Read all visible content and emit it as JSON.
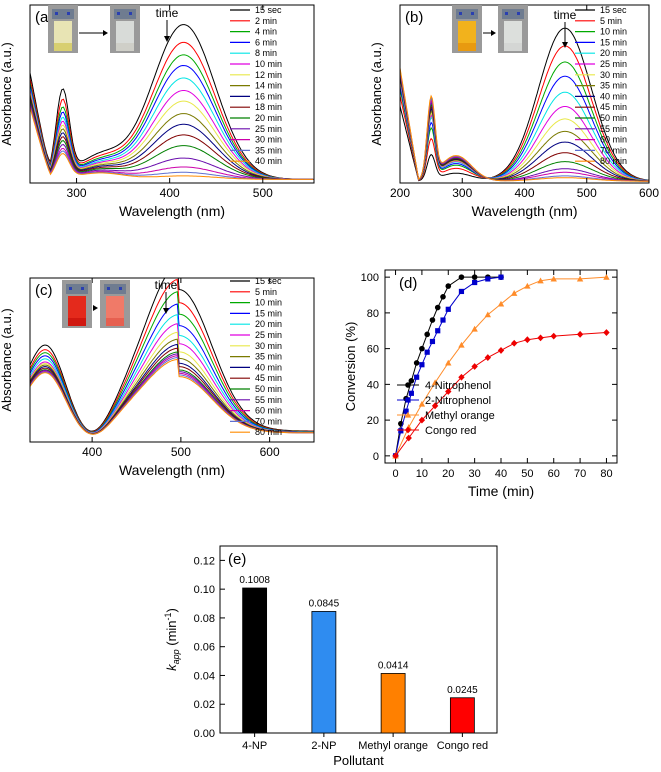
{
  "chart_data": [
    {
      "id": "a",
      "type": "line",
      "panel_label": "(a)",
      "xlabel": "Wavelength (nm)",
      "ylabel": "Absorbance (a.u.)",
      "xlim": [
        250,
        555
      ],
      "xticks": [
        300,
        400,
        500
      ],
      "ylim": [
        0,
        1
      ],
      "annotation": "time",
      "model": {
        "trough": 272,
        "uv_peak": 285,
        "uv_width": 10,
        "uv_height": 0.68,
        "tail_height": 0.42,
        "second_peak": 415,
        "second_width": 48,
        "tail_level": 0.02
      },
      "series": [
        {
          "name": "15 sec",
          "color": "#000000",
          "peak": 0.87,
          "base": 0.7
        },
        {
          "name": "2 min",
          "color": "#ff0000",
          "peak": 0.77,
          "base": 0.62
        },
        {
          "name": "4 min",
          "color": "#00aa00",
          "peak": 0.7,
          "base": 0.56
        },
        {
          "name": "6 min",
          "color": "#0000ff",
          "peak": 0.64,
          "base": 0.52
        },
        {
          "name": "8 min",
          "color": "#00e5e5",
          "peak": 0.57,
          "base": 0.48
        },
        {
          "name": "10 min",
          "color": "#e000e0",
          "peak": 0.5,
          "base": 0.45
        },
        {
          "name": "12 min",
          "color": "#e8e84a",
          "peak": 0.44,
          "base": 0.42
        },
        {
          "name": "14 min",
          "color": "#7a7a00",
          "peak": 0.37,
          "base": 0.39
        },
        {
          "name": "16 min",
          "color": "#000080",
          "peak": 0.31,
          "base": 0.36
        },
        {
          "name": "18 min",
          "color": "#800000",
          "peak": 0.25,
          "base": 0.33
        },
        {
          "name": "20 min",
          "color": "#008000",
          "peak": 0.19,
          "base": 0.3
        },
        {
          "name": "25 min",
          "color": "#6a0dad",
          "peak": 0.12,
          "base": 0.27
        },
        {
          "name": "30 min",
          "color": "#cc00aa",
          "peak": 0.07,
          "base": 0.24
        },
        {
          "name": "35 min",
          "color": "#5f6fd0",
          "peak": 0.04,
          "base": 0.22
        },
        {
          "name": "40 min",
          "color": "#ff8c00",
          "peak": 0.02,
          "base": 0.2
        }
      ]
    },
    {
      "id": "b",
      "type": "line",
      "panel_label": "(b)",
      "xlabel": "Wavelength (nm)",
      "ylabel": "Absorbance (a.u.)",
      "xlim": [
        200,
        600
      ],
      "xticks": [
        200,
        300,
        400,
        500,
        600
      ],
      "ylim": [
        0,
        1
      ],
      "annotation": "time",
      "model": {
        "trough": 230,
        "uv_peak": 250,
        "uv_width": 9,
        "uv_height": 0.55,
        "tail_height": 0.35,
        "second_peak": 465,
        "second_width": 60,
        "tail_level": 0.01
      },
      "series": [
        {
          "name": "15 sec",
          "color": "#000000",
          "peak": 0.86,
          "base": 0.25
        },
        {
          "name": "5 min",
          "color": "#ff0000",
          "peak": 0.76,
          "base": 0.4
        },
        {
          "name": "10 min",
          "color": "#00aa00",
          "peak": 0.67,
          "base": 0.5
        },
        {
          "name": "15 min",
          "color": "#0000ff",
          "peak": 0.59,
          "base": 0.55
        },
        {
          "name": "20 min",
          "color": "#00e5e5",
          "peak": 0.5,
          "base": 0.6
        },
        {
          "name": "25 min",
          "color": "#e000e0",
          "peak": 0.42,
          "base": 0.62
        },
        {
          "name": "30 min",
          "color": "#e8e84a",
          "peak": 0.35,
          "base": 0.64
        },
        {
          "name": "35 min",
          "color": "#7a7a00",
          "peak": 0.28,
          "base": 0.66
        },
        {
          "name": "40 min",
          "color": "#000080",
          "peak": 0.22,
          "base": 0.68
        },
        {
          "name": "45 min",
          "color": "#800000",
          "peak": 0.16,
          "base": 0.7
        },
        {
          "name": "50 min",
          "color": "#008000",
          "peak": 0.11,
          "base": 0.72
        },
        {
          "name": "55 min",
          "color": "#6a0dad",
          "peak": 0.07,
          "base": 0.74
        },
        {
          "name": "60 min",
          "color": "#cc00aa",
          "peak": 0.05,
          "base": 0.76
        },
        {
          "name": "70 min",
          "color": "#5f6fd0",
          "peak": 0.03,
          "base": 0.78
        },
        {
          "name": "80 min",
          "color": "#ff8c00",
          "peak": 0.02,
          "base": 0.8
        }
      ]
    },
    {
      "id": "c",
      "type": "line",
      "panel_label": "(c)",
      "xlabel": "Wavelength (nm)",
      "ylabel": "Absorbance (a.u.)",
      "xlim": [
        330,
        650
      ],
      "xticks": [
        400,
        500,
        600
      ],
      "ylim": [
        0,
        1
      ],
      "annotation": "time",
      "model": {
        "uv_peak": 348,
        "uv_width": 28,
        "second_peak": 498,
        "second_width": 52,
        "valley": 400,
        "tail_level": 0.03
      },
      "series": [
        {
          "name": "15 sec",
          "color": "#000000",
          "peak": 0.88,
          "base": 0.6
        },
        {
          "name": "5 min",
          "color": "#ff0000",
          "peak": 0.8,
          "base": 0.57
        },
        {
          "name": "10 min",
          "color": "#00aa00",
          "peak": 0.73,
          "base": 0.55
        },
        {
          "name": "15 min",
          "color": "#0000ff",
          "peak": 0.66,
          "base": 0.53
        },
        {
          "name": "20 min",
          "color": "#00e5e5",
          "peak": 0.6,
          "base": 0.51
        },
        {
          "name": "25 min",
          "color": "#e000e0",
          "peak": 0.55,
          "base": 0.49
        },
        {
          "name": "30 min",
          "color": "#e8e84a",
          "peak": 0.5,
          "base": 0.48
        },
        {
          "name": "35 min",
          "color": "#7a7a00",
          "peak": 0.46,
          "base": 0.47
        },
        {
          "name": "40 min",
          "color": "#000080",
          "peak": 0.43,
          "base": 0.46
        },
        {
          "name": "45 min",
          "color": "#800000",
          "peak": 0.41,
          "base": 0.45
        },
        {
          "name": "50 min",
          "color": "#008000",
          "peak": 0.39,
          "base": 0.44
        },
        {
          "name": "55 min",
          "color": "#6a0dad",
          "peak": 0.38,
          "base": 0.435
        },
        {
          "name": "60 min",
          "color": "#cc00aa",
          "peak": 0.37,
          "base": 0.43
        },
        {
          "name": "70 min",
          "color": "#5f6fd0",
          "peak": 0.36,
          "base": 0.425
        },
        {
          "name": "80 min",
          "color": "#ff8c00",
          "peak": 0.35,
          "base": 0.42
        }
      ]
    },
    {
      "id": "d",
      "type": "line",
      "panel_label": "(d)",
      "xlabel": "Time (min)",
      "ylabel": "Conversion (%)",
      "xlim": [
        -4,
        84
      ],
      "ylim": [
        -4,
        104
      ],
      "xticks": [
        0,
        10,
        20,
        30,
        40,
        50,
        60,
        70,
        80
      ],
      "yticks": [
        0,
        20,
        40,
        60,
        80,
        100
      ],
      "legend_position": "lower-right",
      "series": [
        {
          "name": "4-Nitrophenol",
          "color": "#000000",
          "marker": "circle",
          "x": [
            0,
            2,
            4,
            6,
            8,
            10,
            12,
            14,
            16,
            18,
            20,
            25,
            30,
            35,
            40
          ],
          "y": [
            0,
            18,
            32,
            42,
            52,
            60,
            68,
            76,
            83,
            89,
            95,
            100,
            100,
            100,
            100
          ]
        },
        {
          "name": "2-Nitrophenol",
          "color": "#0000cc",
          "marker": "square",
          "x": [
            0,
            2,
            4,
            6,
            8,
            10,
            12,
            14,
            16,
            18,
            20,
            25,
            30,
            35,
            40
          ],
          "y": [
            0,
            14,
            25,
            35,
            44,
            51,
            58,
            64,
            70,
            76,
            82,
            92,
            97,
            99,
            100
          ]
        },
        {
          "name": "Methyl orange",
          "color": "#ff8c2a",
          "marker": "triangle",
          "x": [
            0,
            5,
            10,
            15,
            20,
            25,
            30,
            35,
            40,
            45,
            50,
            55,
            60,
            70,
            80
          ],
          "y": [
            0,
            16,
            29,
            41,
            52,
            62,
            71,
            79,
            85,
            91,
            95,
            98,
            99,
            99,
            100
          ]
        },
        {
          "name": "Congo red",
          "color": "#ee0000",
          "marker": "diamond",
          "x": [
            0,
            5,
            10,
            15,
            20,
            25,
            30,
            35,
            40,
            45,
            50,
            55,
            60,
            70,
            80
          ],
          "y": [
            0,
            10,
            20,
            28,
            36,
            44,
            50,
            55,
            59,
            63,
            65,
            66,
            67,
            68,
            69
          ]
        }
      ]
    },
    {
      "id": "e",
      "type": "bar",
      "panel_label": "(e)",
      "title": "",
      "xlabel": "Pollutant",
      "ylabel_main": "k",
      "ylabel_sub": "app",
      "ylabel_rest": " (min",
      "ylabel_exp": "-1",
      "ylabel_close": ")",
      "categories": [
        "4-NP",
        "2-NP",
        "Methyl orange",
        "Congo red"
      ],
      "values": [
        0.1008,
        0.0845,
        0.0414,
        0.0245
      ],
      "value_labels": [
        "0.1008",
        "0.0845",
        "0.0414",
        "0.0245"
      ],
      "colors": [
        "#000000",
        "#2f8cf0",
        "#ff8000",
        "#ff0000"
      ],
      "ylim": [
        0,
        0.13
      ],
      "yticks": [
        0.0,
        0.02,
        0.04,
        0.06,
        0.08,
        0.1,
        0.12
      ],
      "ytick_labels": [
        "0.00",
        "0.02",
        "0.04",
        "0.06",
        "0.08",
        "0.10",
        "0.12"
      ]
    }
  ]
}
